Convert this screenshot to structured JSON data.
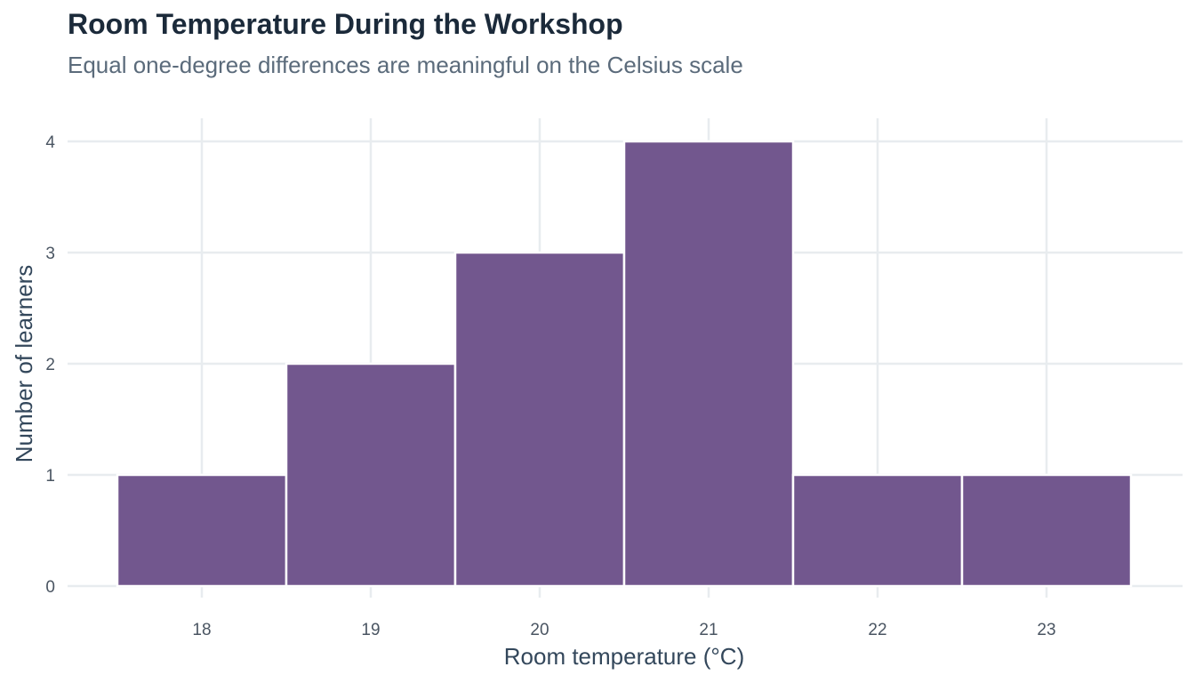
{
  "chart_data": {
    "type": "bar",
    "title": "Room Temperature During the Workshop",
    "subtitle": "Equal one-degree differences are meaningful on the Celsius scale",
    "xlabel": "Room temperature (°C)",
    "ylabel": "Number of learners",
    "categories": [
      "18",
      "19",
      "20",
      "21",
      "22",
      "23"
    ],
    "x": [
      18,
      19,
      20,
      21,
      22,
      23
    ],
    "values": [
      1,
      2,
      3,
      4,
      1,
      1
    ],
    "xlim": [
      17.3,
      23.8
    ],
    "ylim": [
      0,
      4.2
    ],
    "yticks": [
      0,
      1,
      2,
      3,
      4
    ],
    "grid": true,
    "legend": "none",
    "colors": {
      "bar": "#72578e",
      "bar_outline": "#ffffff",
      "grid": "#e8ecef",
      "title": "#1b2a3a",
      "subtitle": "#5b6b7b"
    }
  }
}
